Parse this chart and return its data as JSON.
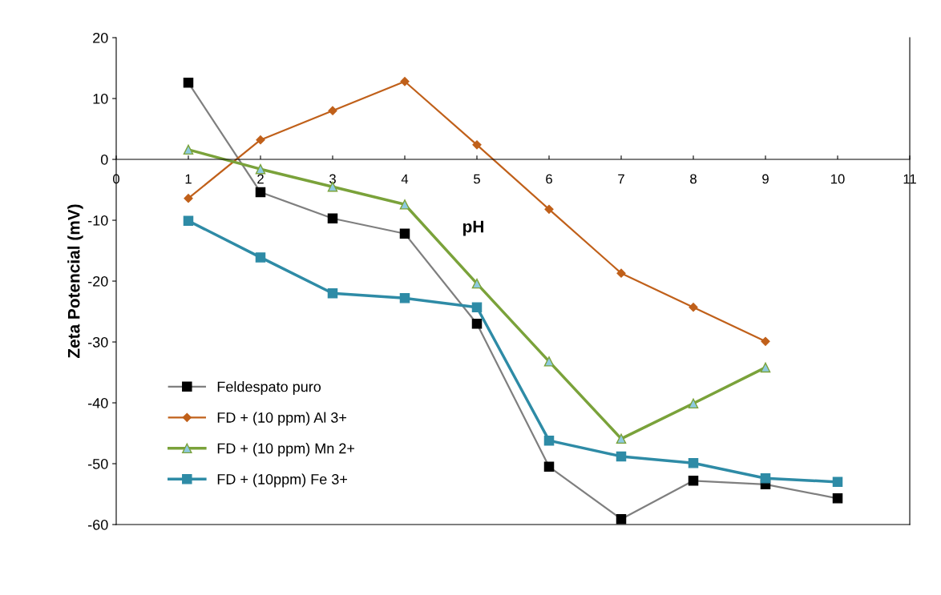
{
  "chart_data": {
    "type": "line",
    "xlabel": "pH",
    "ylabel": "Zeta Potencial (mV)",
    "xlim": [
      0,
      11
    ],
    "xticks": [
      0,
      1,
      2,
      3,
      4,
      5,
      6,
      7,
      8,
      9,
      10,
      11
    ],
    "ylim": [
      -60,
      20
    ],
    "yticks": [
      -60,
      -50,
      -40,
      -30,
      -20,
      -10,
      0,
      10,
      20
    ],
    "grid": false,
    "legend": "bottom left",
    "series": [
      {
        "name": "Feldespato puro",
        "color": "#7f7f7f",
        "marker": "square",
        "x": [
          1,
          2,
          3,
          4,
          5,
          6,
          7,
          8,
          9,
          10
        ],
        "values": [
          12.6,
          -5.4,
          -9.7,
          -12.2,
          -27.0,
          -50.5,
          -59.1,
          -52.8,
          -53.4,
          -55.7
        ]
      },
      {
        "name": "FD + (10 ppm) Al 3+",
        "color": "#c0601a",
        "marker": "diamond",
        "x": [
          1,
          2,
          3,
          4,
          5,
          6,
          7,
          8,
          9
        ],
        "values": [
          -6.4,
          3.2,
          8.0,
          12.8,
          2.4,
          -8.2,
          -18.7,
          -24.3,
          -29.9
        ]
      },
      {
        "name": "FD + (10 ppm) Mn 2+",
        "color": "#7aa23a",
        "marker": "triangle",
        "x": [
          1,
          2,
          3,
          4,
          5,
          6,
          7,
          8,
          9
        ],
        "values": [
          1.6,
          -1.6,
          -4.5,
          -7.4,
          -20.4,
          -33.2,
          -45.9,
          -40.1,
          -34.2
        ]
      },
      {
        "name": "FD + (10ppm) Fe 3+",
        "color": "#2e8ba6",
        "marker": "square",
        "x": [
          1,
          2,
          3,
          4,
          5,
          6,
          7,
          8,
          9,
          10
        ],
        "values": [
          -10.1,
          -16.1,
          -22.0,
          -22.8,
          -24.3,
          -46.2,
          -48.8,
          -49.9,
          -52.4,
          -53.0
        ]
      }
    ]
  }
}
